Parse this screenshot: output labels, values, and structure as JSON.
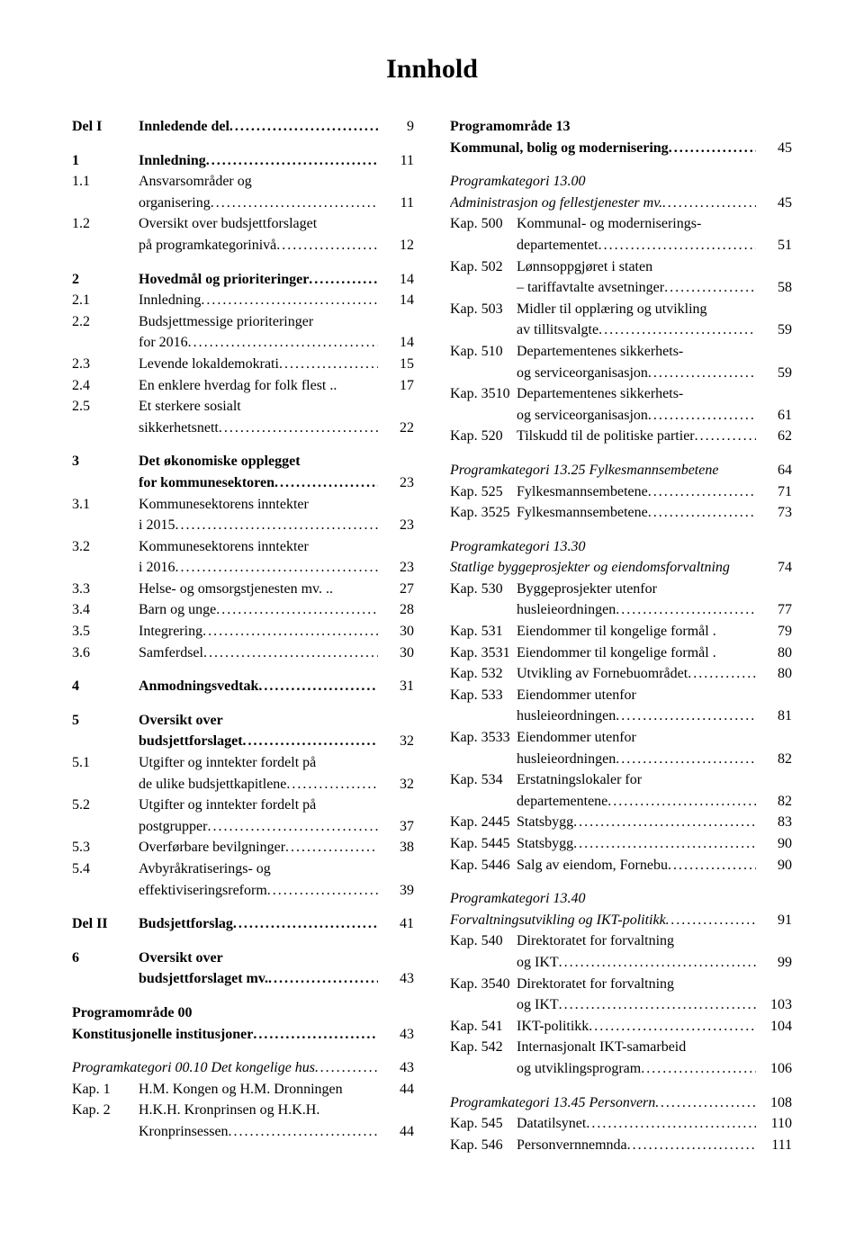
{
  "title": "Innhold",
  "left": [
    {
      "type": "row",
      "num": "Del I",
      "numBold": true,
      "text": "Innledende del",
      "bold": true,
      "page": "9"
    },
    {
      "type": "spacer"
    },
    {
      "type": "row",
      "num": "1",
      "numBold": true,
      "text": "Innledning",
      "bold": true,
      "page": "11"
    },
    {
      "type": "row2",
      "num": "1.1",
      "text1": "Ansvarsområder og",
      "text2": "organisering",
      "page": "11"
    },
    {
      "type": "row2",
      "num": "1.2",
      "text1": "Oversikt over budsjettforslaget",
      "text2": "på programkategorinivå",
      "page": "12"
    },
    {
      "type": "spacer"
    },
    {
      "type": "row",
      "num": "2",
      "numBold": true,
      "text": "Hovedmål og prioriteringer",
      "bold": true,
      "page": "14"
    },
    {
      "type": "row",
      "num": "2.1",
      "text": "Innledning",
      "page": "14"
    },
    {
      "type": "row2",
      "num": "2.2",
      "text1": "Budsjettmessige prioriteringer",
      "text2": "for 2016",
      "page": "14"
    },
    {
      "type": "row",
      "num": "2.3",
      "text": "Levende lokaldemokrati",
      "page": "15"
    },
    {
      "type": "row",
      "num": "2.4",
      "text": "En enklere hverdag for folk flest ..",
      "page": "17",
      "noleader": true
    },
    {
      "type": "row2",
      "num": "2.5",
      "text1": "Et sterkere sosialt",
      "text2": "sikkerhetsnett",
      "page": "22"
    },
    {
      "type": "spacer"
    },
    {
      "type": "row2",
      "num": "3",
      "numBold": true,
      "text1": "Det økonomiske opplegget",
      "text2": "for kommunesektoren",
      "bold": true,
      "page": "23"
    },
    {
      "type": "row2",
      "num": "3.1",
      "text1": "Kommunesektorens inntekter",
      "text2": "i 2015",
      "page": "23"
    },
    {
      "type": "row2",
      "num": "3.2",
      "text1": "Kommunesektorens inntekter",
      "text2": "i 2016",
      "page": "23"
    },
    {
      "type": "row",
      "num": "3.3",
      "text": "Helse- og omsorgstjenesten mv. ..",
      "page": "27",
      "noleader": true
    },
    {
      "type": "row",
      "num": "3.4",
      "text": "Barn og unge",
      "page": "28"
    },
    {
      "type": "row",
      "num": "3.5",
      "text": "Integrering",
      "page": "30"
    },
    {
      "type": "row",
      "num": "3.6",
      "text": "Samferdsel",
      "page": "30"
    },
    {
      "type": "spacer"
    },
    {
      "type": "row",
      "num": "4",
      "numBold": true,
      "text": "Anmodningsvedtak",
      "bold": true,
      "page": "31"
    },
    {
      "type": "spacer"
    },
    {
      "type": "row2",
      "num": "5",
      "numBold": true,
      "text1": "Oversikt over",
      "text2": "budsjettforslaget",
      "bold": true,
      "page": "32"
    },
    {
      "type": "row2",
      "num": "5.1",
      "text1": "Utgifter og inntekter fordelt på",
      "text2": "de ulike budsjettkapitlene",
      "page": "32"
    },
    {
      "type": "row2",
      "num": "5.2",
      "text1": "Utgifter og inntekter fordelt på",
      "text2": "postgrupper",
      "page": "37"
    },
    {
      "type": "row",
      "num": "5.3",
      "text": "Overførbare bevilgninger",
      "page": "38"
    },
    {
      "type": "row2",
      "num": "5.4",
      "text1": "Avbyråkratiserings- og",
      "text2": "effektiviseringsreform",
      "page": "39"
    },
    {
      "type": "spacer"
    },
    {
      "type": "row",
      "num": "Del II",
      "numBold": true,
      "text": "Budsjettforslag",
      "bold": true,
      "page": "41"
    },
    {
      "type": "spacer"
    },
    {
      "type": "row2",
      "num": "6",
      "numBold": true,
      "text1": "Oversikt over",
      "text2": "budsjettforslaget mv.",
      "bold": true,
      "page": "43"
    },
    {
      "type": "spacer"
    },
    {
      "type": "full",
      "text": "Programområde 00",
      "bold": true,
      "noleader": true
    },
    {
      "type": "full",
      "text": "Konstitusjonelle institusjoner",
      "bold": true,
      "page": "43"
    },
    {
      "type": "spacer"
    },
    {
      "type": "full",
      "text": "Programkategori 00.10 Det kongelige hus",
      "italic": true,
      "page": "43"
    },
    {
      "type": "row",
      "num": "Kap. 1",
      "text": "H.M. Kongen og H.M. Dronningen",
      "page": "44",
      "noleader": true
    },
    {
      "type": "row2",
      "num": "Kap. 2",
      "text1": "H.K.H. Kronprinsen og H.K.H.",
      "text2": "Kronprinsessen",
      "page": "44"
    }
  ],
  "right": [
    {
      "type": "full",
      "text": "Programområde 13",
      "bold": true,
      "noleader": true
    },
    {
      "type": "full",
      "text": "Kommunal, bolig og modernisering",
      "bold": true,
      "page": "45"
    },
    {
      "type": "spacer"
    },
    {
      "type": "full",
      "text": "Programkategori 13.00",
      "italic": true,
      "noleader": true
    },
    {
      "type": "full",
      "text": "Administrasjon og fellestjenester mv.",
      "italic": true,
      "page": "45"
    },
    {
      "type": "row2",
      "num": "Kap. 500",
      "text1": "Kommunal- og moderniserings-",
      "text2": "departementet",
      "page": "51"
    },
    {
      "type": "row2",
      "num": "Kap. 502",
      "text1": "Lønnsoppgjøret i staten",
      "text2": "– tariffavtalte avsetninger",
      "page": "58"
    },
    {
      "type": "row2",
      "num": "Kap. 503",
      "text1": "Midler til opplæring og utvikling",
      "text2": "av tillitsvalgte",
      "page": "59"
    },
    {
      "type": "row2",
      "num": "Kap. 510",
      "text1": "Departementenes sikkerhets-",
      "text2": "og serviceorganisasjon",
      "page": "59"
    },
    {
      "type": "row2",
      "num": "Kap. 3510",
      "text1": "Departementenes sikkerhets-",
      "text2": "og serviceorganisasjon",
      "page": "61"
    },
    {
      "type": "row",
      "num": "Kap. 520",
      "text": "Tilskudd til de politiske partier",
      "page": "62"
    },
    {
      "type": "spacer"
    },
    {
      "type": "full",
      "text": "Programkategori 13.25 Fylkesmannsembetene",
      "italic": true,
      "page": "64",
      "noleader": true
    },
    {
      "type": "row",
      "num": "Kap. 525",
      "text": "Fylkesmannsembetene",
      "page": "71"
    },
    {
      "type": "row",
      "num": "Kap. 3525",
      "text": "Fylkesmannsembetene",
      "page": "73"
    },
    {
      "type": "spacer"
    },
    {
      "type": "full",
      "text": "Programkategori 13.30",
      "italic": true,
      "noleader": true
    },
    {
      "type": "full",
      "text": "Statlige byggeprosjekter og eiendomsforvaltning",
      "italic": true,
      "page": "74",
      "noleader": true
    },
    {
      "type": "row2",
      "num": "Kap. 530",
      "text1": "Byggeprosjekter utenfor",
      "text2": "husleieordningen",
      "page": "77"
    },
    {
      "type": "row",
      "num": "Kap. 531",
      "text": "Eiendommer til kongelige formål .",
      "page": "79",
      "noleader": true
    },
    {
      "type": "row",
      "num": "Kap. 3531",
      "text": "Eiendommer til kongelige formål .",
      "page": "80",
      "noleader": true
    },
    {
      "type": "row",
      "num": "Kap. 532",
      "text": "Utvikling av Fornebuområdet",
      "page": "80"
    },
    {
      "type": "row2",
      "num": "Kap. 533",
      "text1": "Eiendommer utenfor",
      "text2": "husleieordningen",
      "page": "81"
    },
    {
      "type": "row2",
      "num": "Kap. 3533",
      "text1": "Eiendommer utenfor",
      "text2": "husleieordningen",
      "page": "82"
    },
    {
      "type": "row2",
      "num": "Kap. 534",
      "text1": "Erstatningslokaler for",
      "text2": "departementene",
      "page": "82"
    },
    {
      "type": "row",
      "num": "Kap. 2445",
      "text": "Statsbygg",
      "page": "83"
    },
    {
      "type": "row",
      "num": "Kap. 5445",
      "text": "Statsbygg",
      "page": "90"
    },
    {
      "type": "row",
      "num": "Kap. 5446",
      "text": "Salg av eiendom, Fornebu",
      "page": "90"
    },
    {
      "type": "spacer"
    },
    {
      "type": "full",
      "text": "Programkategori 13.40",
      "italic": true,
      "noleader": true
    },
    {
      "type": "full",
      "text": "Forvaltningsutvikling og IKT-politikk",
      "italic": true,
      "page": "91"
    },
    {
      "type": "row2",
      "num": "Kap. 540",
      "text1": "Direktoratet for forvaltning",
      "text2": "og IKT",
      "page": "99"
    },
    {
      "type": "row2",
      "num": "Kap. 3540",
      "text1": "Direktoratet for forvaltning",
      "text2": "og IKT",
      "page": "103"
    },
    {
      "type": "row",
      "num": "Kap. 541",
      "text": "IKT-politikk",
      "page": "104"
    },
    {
      "type": "row2",
      "num": "Kap. 542",
      "text1": "Internasjonalt IKT-samarbeid",
      "text2": "og utviklingsprogram",
      "page": "106"
    },
    {
      "type": "spacer"
    },
    {
      "type": "full",
      "text": "Programkategori 13.45 Personvern",
      "italic": true,
      "page": "108"
    },
    {
      "type": "row",
      "num": "Kap. 545",
      "text": "Datatilsynet",
      "page": "110"
    },
    {
      "type": "row",
      "num": "Kap. 546",
      "text": "Personvernnemnda",
      "page": "111"
    }
  ]
}
